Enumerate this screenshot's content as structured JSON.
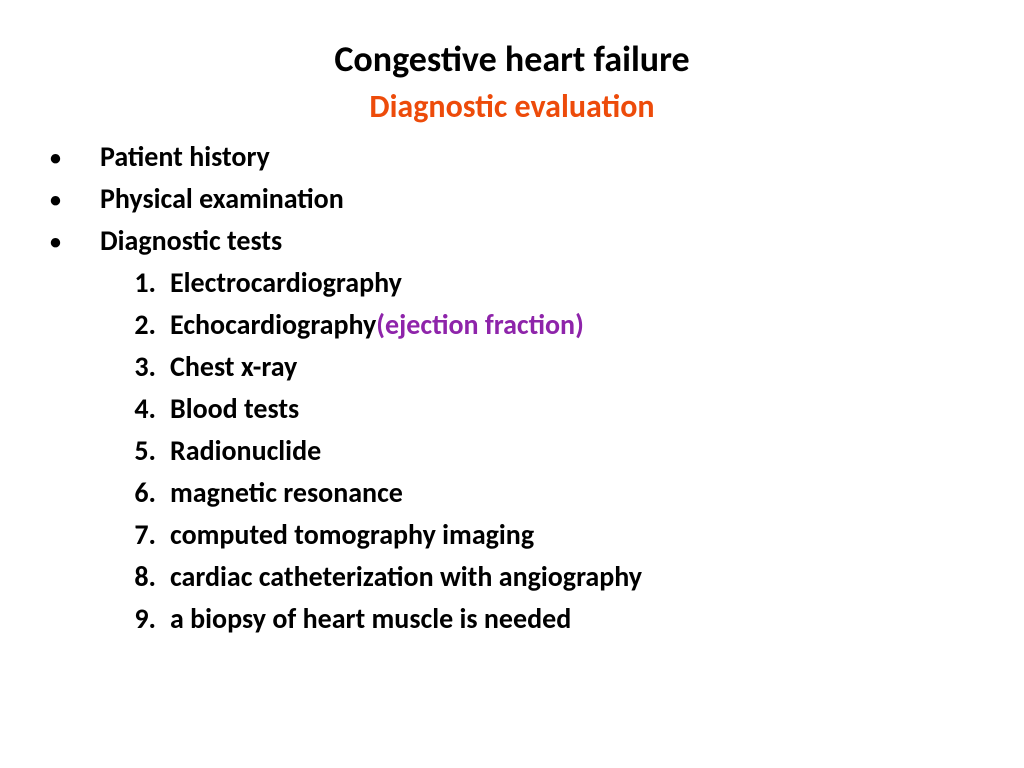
{
  "colors": {
    "title": "#000000",
    "subtitle": "#ed4b0a",
    "body": "#000000",
    "accent": "#8e24aa",
    "background": "#ffffff"
  },
  "title": "Congestive heart failure",
  "subtitle": "Diagnostic evaluation",
  "bullets": [
    "Patient history",
    "Physical examination",
    "Diagnostic tests"
  ],
  "tests": [
    {
      "n": "1.",
      "text": "Electrocardiography",
      "accent": ""
    },
    {
      "n": "2.",
      "text": "Echocardiography",
      "accent": "(ejection fraction)"
    },
    {
      "n": "3.",
      "text": "Chest x-ray",
      "accent": ""
    },
    {
      "n": "4.",
      "text": "Blood tests",
      "accent": ""
    },
    {
      "n": "5.",
      "text": "Radionuclide",
      "accent": ""
    },
    {
      "n": "6.",
      "text": " magnetic resonance",
      "accent": ""
    },
    {
      "n": "7.",
      "text": "computed tomography imaging",
      "accent": ""
    },
    {
      "n": "8.",
      "text": "cardiac catheterization with angiography",
      "accent": ""
    },
    {
      "n": "9.",
      "text": "a biopsy of heart muscle is needed",
      "accent": ""
    }
  ]
}
